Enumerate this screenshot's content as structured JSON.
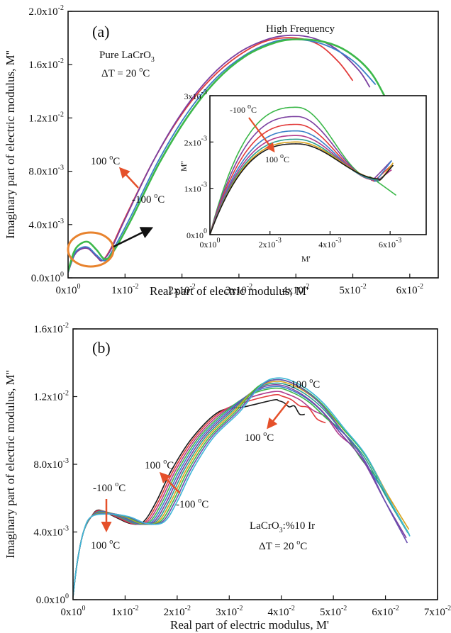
{
  "chart_data": [
    {
      "id": "a",
      "type": "line",
      "panel_label": "(a)",
      "xlabel": "Real part of electric modulus, M'",
      "ylabel": "Imaginary part of electric modulus, M''",
      "xlim": [
        0,
        0.065
      ],
      "ylim": [
        0,
        0.02
      ],
      "xticks": [
        {
          "v": 0,
          "m": "0x10",
          "e": "0"
        },
        {
          "v": 0.01,
          "m": "1x10",
          "e": "-2"
        },
        {
          "v": 0.02,
          "m": "2x10",
          "e": "-2"
        },
        {
          "v": 0.03,
          "m": "3x10",
          "e": "-2"
        },
        {
          "v": 0.04,
          "m": "4x10",
          "e": "-2"
        },
        {
          "v": 0.05,
          "m": "5x10",
          "e": "-2"
        },
        {
          "v": 0.06,
          "m": "6x10",
          "e": "-2"
        }
      ],
      "yticks": [
        {
          "v": 0,
          "m": "0.0x10",
          "e": "0"
        },
        {
          "v": 0.004,
          "m": "4.0x10",
          "e": "-3"
        },
        {
          "v": 0.008,
          "m": "8.0x10",
          "e": "-3"
        },
        {
          "v": 0.012,
          "m": "1.2x10",
          "e": "-2"
        },
        {
          "v": 0.016,
          "m": "1.6x10",
          "e": "-2"
        },
        {
          "v": 0.02,
          "m": "2.0x10",
          "e": "-2"
        }
      ],
      "annotations": {
        "sample": "Pure LaCrO",
        "sample_sub": "3",
        "delta_t": "ΔT = 20 ",
        "delta_t_sup": "o",
        "delta_t_unit": "C",
        "high_frequency": "High Frequency",
        "temp_high": "100 ",
        "temp_high_sup": "o",
        "temp_high_unit": "C",
        "temp_low": "-100 ",
        "temp_low_sup": "o",
        "temp_low_unit": "C"
      },
      "series": [
        {
          "color": "#e23b3b",
          "points": [
            [
              0,
              0.0004
            ],
            [
              0.001,
              0.0016
            ],
            [
              0.002,
              0.0021
            ],
            [
              0.0035,
              0.0022
            ],
            [
              0.005,
              0.0016
            ],
            [
              0.006,
              0.0013
            ],
            [
              0.0075,
              0.0022
            ],
            [
              0.01,
              0.0045
            ],
            [
              0.015,
              0.0088
            ],
            [
              0.02,
              0.0123
            ],
            [
              0.025,
              0.0149
            ],
            [
              0.03,
              0.0167
            ],
            [
              0.035,
              0.0178
            ],
            [
              0.04,
              0.018
            ],
            [
              0.044,
              0.0175
            ],
            [
              0.0475,
              0.0162
            ],
            [
              0.05,
              0.0148
            ]
          ]
        },
        {
          "color": "#7b3fa0",
          "points": [
            [
              0,
              0.0004
            ],
            [
              0.001,
              0.0016
            ],
            [
              0.002,
              0.0021
            ],
            [
              0.0035,
              0.0022
            ],
            [
              0.005,
              0.0016
            ],
            [
              0.006,
              0.0013
            ],
            [
              0.0075,
              0.0021
            ],
            [
              0.01,
              0.0044
            ],
            [
              0.015,
              0.0088
            ],
            [
              0.02,
              0.0124
            ],
            [
              0.025,
              0.0151
            ],
            [
              0.03,
              0.0169
            ],
            [
              0.035,
              0.0179
            ],
            [
              0.039,
              0.0182
            ],
            [
              0.043,
              0.018
            ],
            [
              0.047,
              0.0172
            ],
            [
              0.051,
              0.0156
            ],
            [
              0.053,
              0.0143
            ]
          ]
        },
        {
          "color": "#3a7fc8",
          "points": [
            [
              0,
              0.0004
            ],
            [
              0.001,
              0.0017
            ],
            [
              0.002,
              0.0022
            ],
            [
              0.0035,
              0.0023
            ],
            [
              0.005,
              0.0017
            ],
            [
              0.0065,
              0.0013
            ],
            [
              0.008,
              0.0022
            ],
            [
              0.011,
              0.0046
            ],
            [
              0.016,
              0.0089
            ],
            [
              0.021,
              0.0124
            ],
            [
              0.026,
              0.015
            ],
            [
              0.031,
              0.0167
            ],
            [
              0.036,
              0.0177
            ],
            [
              0.04,
              0.0179
            ],
            [
              0.045,
              0.0175
            ],
            [
              0.05,
              0.0163
            ],
            [
              0.054,
              0.0145
            ]
          ]
        },
        {
          "color": "#3cb84a",
          "points": [
            [
              0,
              0.0005
            ],
            [
              0.001,
              0.0019
            ],
            [
              0.002,
              0.0025
            ],
            [
              0.0035,
              0.0027
            ],
            [
              0.005,
              0.0021
            ],
            [
              0.0065,
              0.0014
            ],
            [
              0.008,
              0.002
            ],
            [
              0.011,
              0.0043
            ],
            [
              0.016,
              0.0086
            ],
            [
              0.021,
              0.0121
            ],
            [
              0.026,
              0.0148
            ],
            [
              0.031,
              0.0166
            ],
            [
              0.036,
              0.0176
            ],
            [
              0.04,
              0.0179
            ],
            [
              0.045,
              0.0177
            ],
            [
              0.049,
              0.017
            ],
            [
              0.053,
              0.0155
            ],
            [
              0.056,
              0.0133
            ],
            [
              0.059,
              0.0108
            ],
            [
              0.0615,
              0.0086
            ]
          ]
        }
      ],
      "inset": {
        "xlabel": "M'",
        "ylabel": "M''",
        "xlim": [
          0,
          0.0072
        ],
        "ylim": [
          0,
          0.003
        ],
        "xticks": [
          {
            "v": 0,
            "m": "0x10",
            "e": "0"
          },
          {
            "v": 0.002,
            "m": "2x10",
            "e": "-3"
          },
          {
            "v": 0.004,
            "m": "4x10",
            "e": "-3"
          },
          {
            "v": 0.006,
            "m": "6x10",
            "e": "-3"
          }
        ],
        "yticks": [
          {
            "v": 0,
            "m": "0x10",
            "e": "0"
          },
          {
            "v": 0.001,
            "m": "1x10",
            "e": "-3"
          },
          {
            "v": 0.002,
            "m": "2x10",
            "e": "-3"
          },
          {
            "v": 0.003,
            "m": "3x10",
            "e": "-3"
          }
        ],
        "annotations": {
          "temp_low": "-100 ",
          "temp_low_sup": "o",
          "temp_low_unit": "C",
          "temp_high": "100 ",
          "temp_high_sup": "o",
          "temp_high_unit": "C"
        },
        "series": [
          {
            "color": "#3cb84a",
            "peak": 0.00275,
            "valley": 0.00122,
            "xv": 0.0054,
            "xend": 0.0062,
            "yend": 0.00085
          },
          {
            "color": "#7b3fa0",
            "peak": 0.00255,
            "valley": 0.0012,
            "xv": 0.00545,
            "xend": 0.00605,
            "yend": 0.0016
          },
          {
            "color": "#e23b3b",
            "peak": 0.00238,
            "valley": 0.00118,
            "xv": 0.0055,
            "xend": 0.00605,
            "yend": 0.0015
          },
          {
            "color": "#3a7fc8",
            "peak": 0.00224,
            "valley": 0.00118,
            "xv": 0.00555,
            "xend": 0.00605,
            "yend": 0.0016
          },
          {
            "color": "#b13a8c",
            "peak": 0.00214,
            "valley": 0.00118,
            "xv": 0.0056,
            "xend": 0.00605,
            "yend": 0.0014
          },
          {
            "color": "#2e9e8f",
            "peak": 0.00206,
            "valley": 0.00118,
            "xv": 0.00565,
            "xend": 0.0061,
            "yend": 0.0015
          },
          {
            "color": "#d9a21b",
            "peak": 0.002,
            "valley": 0.0012,
            "xv": 0.0057,
            "xend": 0.0061,
            "yend": 0.00155
          },
          {
            "color": "#1a1a1a",
            "peak": 0.00196,
            "valley": 0.0012,
            "xv": 0.0057,
            "xend": 0.0061,
            "yend": 0.0015
          }
        ]
      }
    },
    {
      "id": "b",
      "type": "line",
      "panel_label": "(b)",
      "xlabel": "Real part of electric modulus, M'",
      "ylabel": "Imaginary part of electric modulus, M''",
      "xlim": [
        0,
        0.07
      ],
      "ylim": [
        0,
        0.016
      ],
      "xticks": [
        {
          "v": 0,
          "m": "0x10",
          "e": "0"
        },
        {
          "v": 0.01,
          "m": "1x10",
          "e": "-2"
        },
        {
          "v": 0.02,
          "m": "2x10",
          "e": "-2"
        },
        {
          "v": 0.03,
          "m": "3x10",
          "e": "-2"
        },
        {
          "v": 0.04,
          "m": "4x10",
          "e": "-2"
        },
        {
          "v": 0.05,
          "m": "5x10",
          "e": "-2"
        },
        {
          "v": 0.06,
          "m": "6x10",
          "e": "-2"
        },
        {
          "v": 0.07,
          "m": "7x10",
          "e": "-2"
        }
      ],
      "yticks": [
        {
          "v": 0,
          "m": "0.0x10",
          "e": "0"
        },
        {
          "v": 0.004,
          "m": "4.0x10",
          "e": "-3"
        },
        {
          "v": 0.008,
          "m": "8.0x10",
          "e": "-3"
        },
        {
          "v": 0.012,
          "m": "1.2x10",
          "e": "-2"
        },
        {
          "v": 0.016,
          "m": "1.6x10",
          "e": "-2"
        }
      ],
      "annotations": {
        "sample": "LaCrO",
        "sample_sub": "3",
        "sample_rest": ":%10 Ir",
        "delta_t": "ΔT = 20 ",
        "delta_t_sup": "o",
        "delta_t_unit": "C",
        "peak_low": "-100 ",
        "peak_low_sup": "o",
        "peak_low_unit": "C",
        "peak_high": "100 ",
        "peak_high_sup": "o",
        "peak_high_unit": "C",
        "mid_high": "100 ",
        "mid_high_sup": "o",
        "mid_high_unit": "C",
        "mid_low": "-100 ",
        "mid_low_sup": "o",
        "mid_low_unit": "C",
        "small_low": "-100 ",
        "small_low_sup": "o",
        "small_low_unit": "C",
        "small_high": "100 ",
        "small_high_sup": "o",
        "small_high_unit": "C"
      },
      "series": [
        {
          "color": "#1a1a1a",
          "shift": 0.0,
          "peak": 0.0118,
          "end": [
            0.0445,
            0.0108
          ]
        },
        {
          "color": "#e23b3b",
          "shift": 0.0004,
          "peak": 0.0121,
          "end": [
            0.0485,
            0.0103
          ]
        },
        {
          "color": "#b13a8c",
          "shift": 0.0008,
          "peak": 0.0123,
          "end": [
            0.0535,
            0.009
          ]
        },
        {
          "color": "#3cb84a",
          "shift": 0.0012,
          "peak": 0.0125,
          "end": [
            0.0585,
            0.007
          ]
        },
        {
          "color": "#3a7fc8",
          "shift": 0.0016,
          "peak": 0.0126,
          "end": [
            0.0615,
            0.0055
          ]
        },
        {
          "color": "#7b3fa0",
          "shift": 0.002,
          "peak": 0.0127,
          "end": [
            0.064,
            0.0035
          ]
        },
        {
          "color": "#2e9e8f",
          "shift": 0.0024,
          "peak": 0.0128,
          "end": [
            0.0643,
            0.0038
          ]
        },
        {
          "color": "#d9a21b",
          "shift": 0.0028,
          "peak": 0.0129,
          "end": [
            0.0645,
            0.004
          ]
        },
        {
          "color": "#3cb84a",
          "shift": 0.0032,
          "peak": 0.013,
          "end": [
            0.0646,
            0.0037
          ]
        },
        {
          "color": "#6a4fb0",
          "shift": 0.0036,
          "peak": 0.013,
          "end": [
            0.0642,
            0.0032
          ]
        },
        {
          "color": "#3fb6d8",
          "shift": 0.004,
          "peak": 0.0131,
          "end": [
            0.0647,
            0.0036
          ]
        }
      ]
    }
  ],
  "colors": {
    "arrow_red": "#e5502a",
    "arrow_black": "#111111",
    "highlight_orange": "#e8832e"
  }
}
